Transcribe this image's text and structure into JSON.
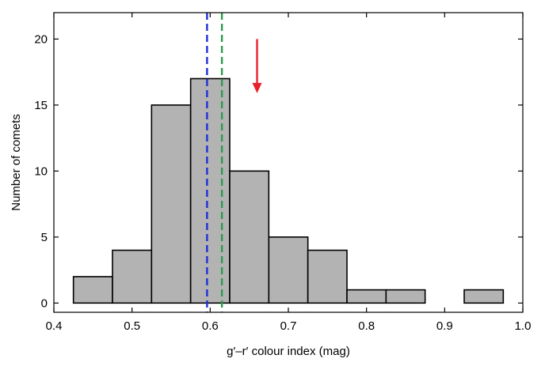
{
  "chart_data": {
    "type": "bar",
    "title": "",
    "xlabel": "g′–r′ colour index (mag)",
    "ylabel": "Number of comets",
    "xlim": [
      0.4,
      1.0
    ],
    "ylim": [
      -0.7,
      22
    ],
    "xticks": [
      0.4,
      0.5,
      0.6,
      0.7,
      0.8,
      0.9,
      1.0
    ],
    "xtick_labels": [
      "0.4",
      "0.5",
      "0.6",
      "0.7",
      "0.8",
      "0.9",
      "1.0"
    ],
    "yticks": [
      0,
      5,
      10,
      15,
      20
    ],
    "ytick_labels": [
      "0",
      "5",
      "10",
      "15",
      "20"
    ],
    "bins": [
      {
        "x0": 0.425,
        "x1": 0.475,
        "count": 2
      },
      {
        "x0": 0.475,
        "x1": 0.525,
        "count": 4
      },
      {
        "x0": 0.525,
        "x1": 0.575,
        "count": 15
      },
      {
        "x0": 0.575,
        "x1": 0.625,
        "count": 17
      },
      {
        "x0": 0.625,
        "x1": 0.675,
        "count": 10
      },
      {
        "x0": 0.675,
        "x1": 0.725,
        "count": 5
      },
      {
        "x0": 0.725,
        "x1": 0.775,
        "count": 4
      },
      {
        "x0": 0.775,
        "x1": 0.825,
        "count": 1
      },
      {
        "x0": 0.825,
        "x1": 0.875,
        "count": 1
      },
      {
        "x0": 0.875,
        "x1": 0.925,
        "count": 0
      },
      {
        "x0": 0.925,
        "x1": 0.975,
        "count": 1
      }
    ],
    "vlines": [
      {
        "x": 0.596,
        "color": "#1f2fd6",
        "style": "dashed"
      },
      {
        "x": 0.615,
        "color": "#2e9a4e",
        "style": "dashed"
      }
    ],
    "arrow": {
      "x": 0.66,
      "y_from": 20,
      "y_to": 15.9,
      "color": "#e8202a"
    },
    "bar_fill": "#b3b3b3",
    "bar_stroke": "#000000",
    "grid": false,
    "legend": "none"
  }
}
